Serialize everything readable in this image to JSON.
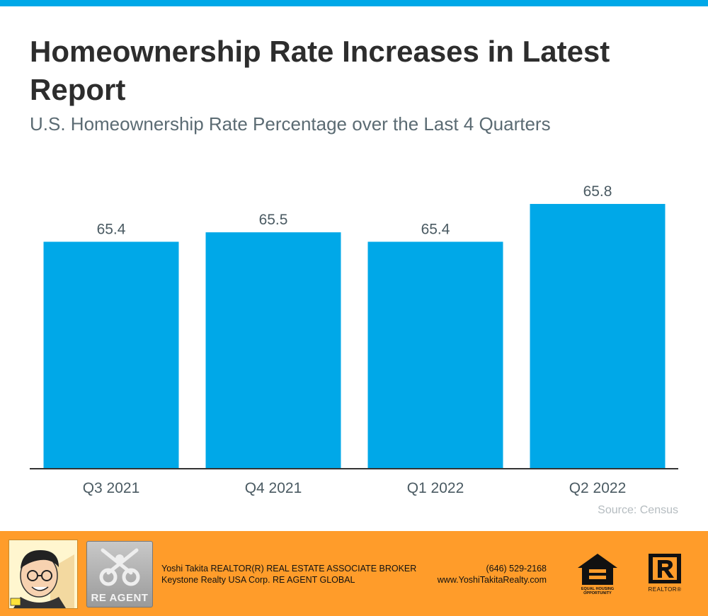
{
  "title": "Homeownership Rate Increases in Latest Report",
  "subtitle": "U.S. Homeownership Rate Percentage over the Last 4 Quarters",
  "source": "Source: Census",
  "colors": {
    "accent": "#00a8e8",
    "footer": "#ff9c2a",
    "title": "#2d2d2d",
    "subtitle": "#5b6b73"
  },
  "chart_data": {
    "type": "bar",
    "categories": [
      "Q3 2021",
      "Q4 2021",
      "Q1 2022",
      "Q2 2022"
    ],
    "values": [
      65.4,
      65.5,
      65.4,
      65.8
    ],
    "data_labels": [
      "65.4",
      "65.5",
      "65.4",
      "65.8"
    ],
    "title": "Homeownership Rate Increases in Latest Report",
    "subtitle": "U.S. Homeownership Rate Percentage over the Last 4 Quarters",
    "xlabel": "",
    "ylabel": "",
    "ylim": [
      63.0,
      65.95
    ],
    "grid": false,
    "legend": "none",
    "bar_color": "#00a8e8"
  },
  "footer": {
    "agent_line1": "Yoshi Takita REALTOR(R) REAL ESTATE ASSOCIATE BROKER",
    "agent_line2": "Keystone Realty USA Corp.  RE AGENT GLOBAL",
    "phone": "(646) 529-2168",
    "website": "www.YoshiTakitaRealty.com",
    "agent_logo_text": "RE AGENT",
    "eho_text_1": "EQUAL HOUSING",
    "eho_text_2": "OPPORTUNITY",
    "realtor_text": "REALTOR®"
  }
}
